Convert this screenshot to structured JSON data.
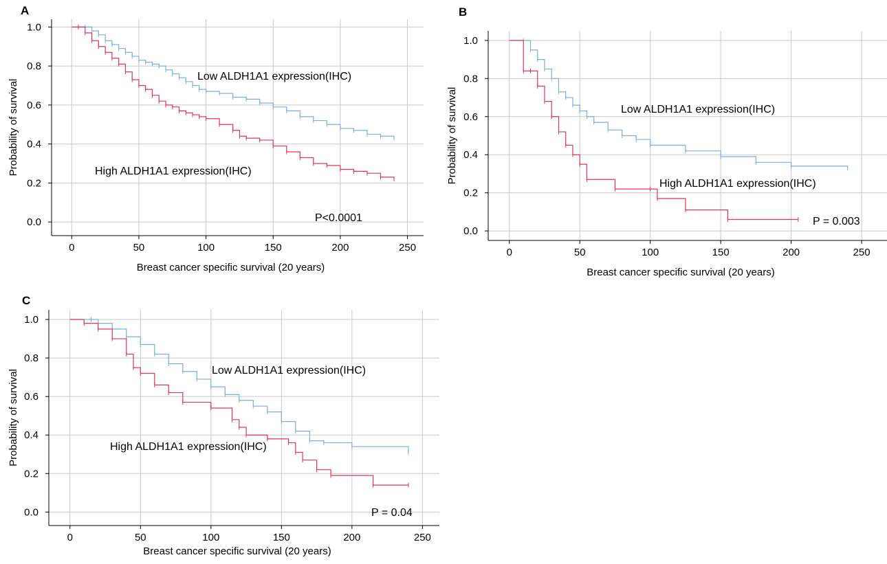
{
  "colors": {
    "low": "#7aaee0",
    "high": "#e0345a",
    "grid": "#c8c8c8"
  },
  "chart_data": [
    {
      "panel": "A",
      "type": "line",
      "xlabel": "Breast cancer specific survival (20 years)",
      "ylabel": "Probability of survival",
      "xticks": [
        0,
        50,
        100,
        150,
        200,
        250
      ],
      "yticks": [
        "0.0",
        "0.2",
        "0.4",
        "0.6",
        "0.8",
        "1.0"
      ],
      "xlim": [
        -15,
        262
      ],
      "ylim": [
        -0.07,
        1.04
      ],
      "grid": true,
      "series": [
        {
          "name": "Low ALDH1A1 expression(IHC)",
          "color": "#7aaee0",
          "x": [
            0,
            5,
            10,
            15,
            20,
            25,
            30,
            35,
            40,
            45,
            50,
            55,
            60,
            65,
            70,
            75,
            80,
            85,
            90,
            95,
            100,
            110,
            120,
            130,
            140,
            150,
            160,
            170,
            180,
            190,
            200,
            210,
            220,
            230,
            240
          ],
          "y": [
            1.0,
            1.0,
            1.0,
            0.98,
            0.96,
            0.93,
            0.91,
            0.89,
            0.87,
            0.85,
            0.83,
            0.82,
            0.81,
            0.8,
            0.78,
            0.76,
            0.74,
            0.72,
            0.7,
            0.68,
            0.67,
            0.66,
            0.64,
            0.63,
            0.61,
            0.59,
            0.57,
            0.54,
            0.52,
            0.5,
            0.48,
            0.47,
            0.45,
            0.44,
            0.43
          ]
        },
        {
          "name": "High ALDH1A1 expression(IHC)",
          "color": "#e0345a",
          "x": [
            0,
            5,
            10,
            15,
            20,
            25,
            30,
            35,
            40,
            45,
            50,
            55,
            60,
            65,
            70,
            75,
            80,
            85,
            90,
            95,
            100,
            110,
            120,
            125,
            130,
            140,
            150,
            160,
            170,
            180,
            190,
            200,
            210,
            220,
            230,
            240
          ],
          "y": [
            1.0,
            1.0,
            0.97,
            0.93,
            0.9,
            0.87,
            0.84,
            0.81,
            0.77,
            0.73,
            0.7,
            0.68,
            0.65,
            0.62,
            0.6,
            0.59,
            0.57,
            0.56,
            0.55,
            0.54,
            0.53,
            0.5,
            0.47,
            0.44,
            0.43,
            0.42,
            0.39,
            0.36,
            0.33,
            0.3,
            0.29,
            0.27,
            0.26,
            0.25,
            0.23,
            0.22
          ]
        }
      ],
      "annotations": {
        "low": "Low ALDH1A1 expression(IHC)",
        "high": "High ALDH1A1 expression(IHC)",
        "p": "P<0.0001"
      }
    },
    {
      "panel": "B",
      "type": "line",
      "xlabel": "Breast cancer specific survival (20 years)",
      "ylabel": "Probability of survival",
      "xticks": [
        0,
        50,
        100,
        150,
        200,
        250
      ],
      "yticks": [
        "0.0",
        "0.2",
        "0.4",
        "0.6",
        "0.8",
        "1.0"
      ],
      "xlim": [
        -15,
        268
      ],
      "ylim": [
        -0.05,
        1.05
      ],
      "grid": true,
      "series": [
        {
          "name": "Low ALDH1A1 expression(IHC)",
          "color": "#7aaee0",
          "x": [
            0,
            10,
            15,
            20,
            25,
            30,
            35,
            40,
            45,
            50,
            55,
            60,
            70,
            80,
            90,
            100,
            125,
            150,
            175,
            200,
            240
          ],
          "y": [
            1.0,
            1.0,
            0.95,
            0.9,
            0.85,
            0.8,
            0.73,
            0.7,
            0.66,
            0.63,
            0.6,
            0.57,
            0.53,
            0.5,
            0.48,
            0.45,
            0.42,
            0.39,
            0.36,
            0.34,
            0.33
          ]
        },
        {
          "name": "High ALDH1A1 expression(IHC)",
          "color": "#e0345a",
          "x": [
            0,
            10,
            15,
            20,
            25,
            30,
            35,
            40,
            45,
            50,
            55,
            75,
            100,
            105,
            125,
            155,
            205
          ],
          "y": [
            1.0,
            0.84,
            0.84,
            0.76,
            0.68,
            0.6,
            0.52,
            0.45,
            0.4,
            0.35,
            0.27,
            0.22,
            0.22,
            0.17,
            0.11,
            0.06,
            0.06
          ]
        }
      ],
      "annotations": {
        "low": "Low ALDH1A1 expression(IHC)",
        "high": "High ALDH1A1 expression(IHC)",
        "p": "P = 0.003"
      }
    },
    {
      "panel": "C",
      "type": "line",
      "xlabel": "Breast cancer specific survival (20 years)",
      "ylabel": "Probability of survival",
      "xticks": [
        0,
        50,
        100,
        150,
        200,
        250
      ],
      "yticks": [
        "0.0",
        "0.2",
        "0.4",
        "0.6",
        "0.8",
        "1.0"
      ],
      "xlim": [
        -15,
        262
      ],
      "ylim": [
        -0.07,
        1.05
      ],
      "grid": true,
      "series": [
        {
          "name": "Low ALDH1A1 expression(IHC)",
          "color": "#7aaee0",
          "x": [
            0,
            15,
            20,
            30,
            40,
            50,
            60,
            70,
            80,
            90,
            100,
            110,
            120,
            130,
            140,
            150,
            160,
            170,
            180,
            200,
            240
          ],
          "y": [
            1.0,
            1.0,
            0.98,
            0.95,
            0.91,
            0.87,
            0.82,
            0.77,
            0.73,
            0.69,
            0.65,
            0.61,
            0.58,
            0.55,
            0.52,
            0.47,
            0.42,
            0.37,
            0.36,
            0.34,
            0.31
          ]
        },
        {
          "name": "High ALDH1A1 expression(IHC)",
          "color": "#e0345a",
          "x": [
            0,
            10,
            20,
            30,
            40,
            45,
            50,
            60,
            70,
            80,
            100,
            115,
            120,
            125,
            140,
            155,
            160,
            165,
            175,
            185,
            215,
            240
          ],
          "y": [
            1.0,
            0.98,
            0.95,
            0.9,
            0.82,
            0.75,
            0.72,
            0.66,
            0.62,
            0.57,
            0.54,
            0.48,
            0.44,
            0.4,
            0.38,
            0.36,
            0.31,
            0.27,
            0.22,
            0.19,
            0.14,
            0.14
          ]
        }
      ],
      "annotations": {
        "low": "Low ALDH1A1 expression(IHC)",
        "high": "High ALDH1A1 expression(IHC)",
        "p": "P = 0.04"
      }
    }
  ]
}
